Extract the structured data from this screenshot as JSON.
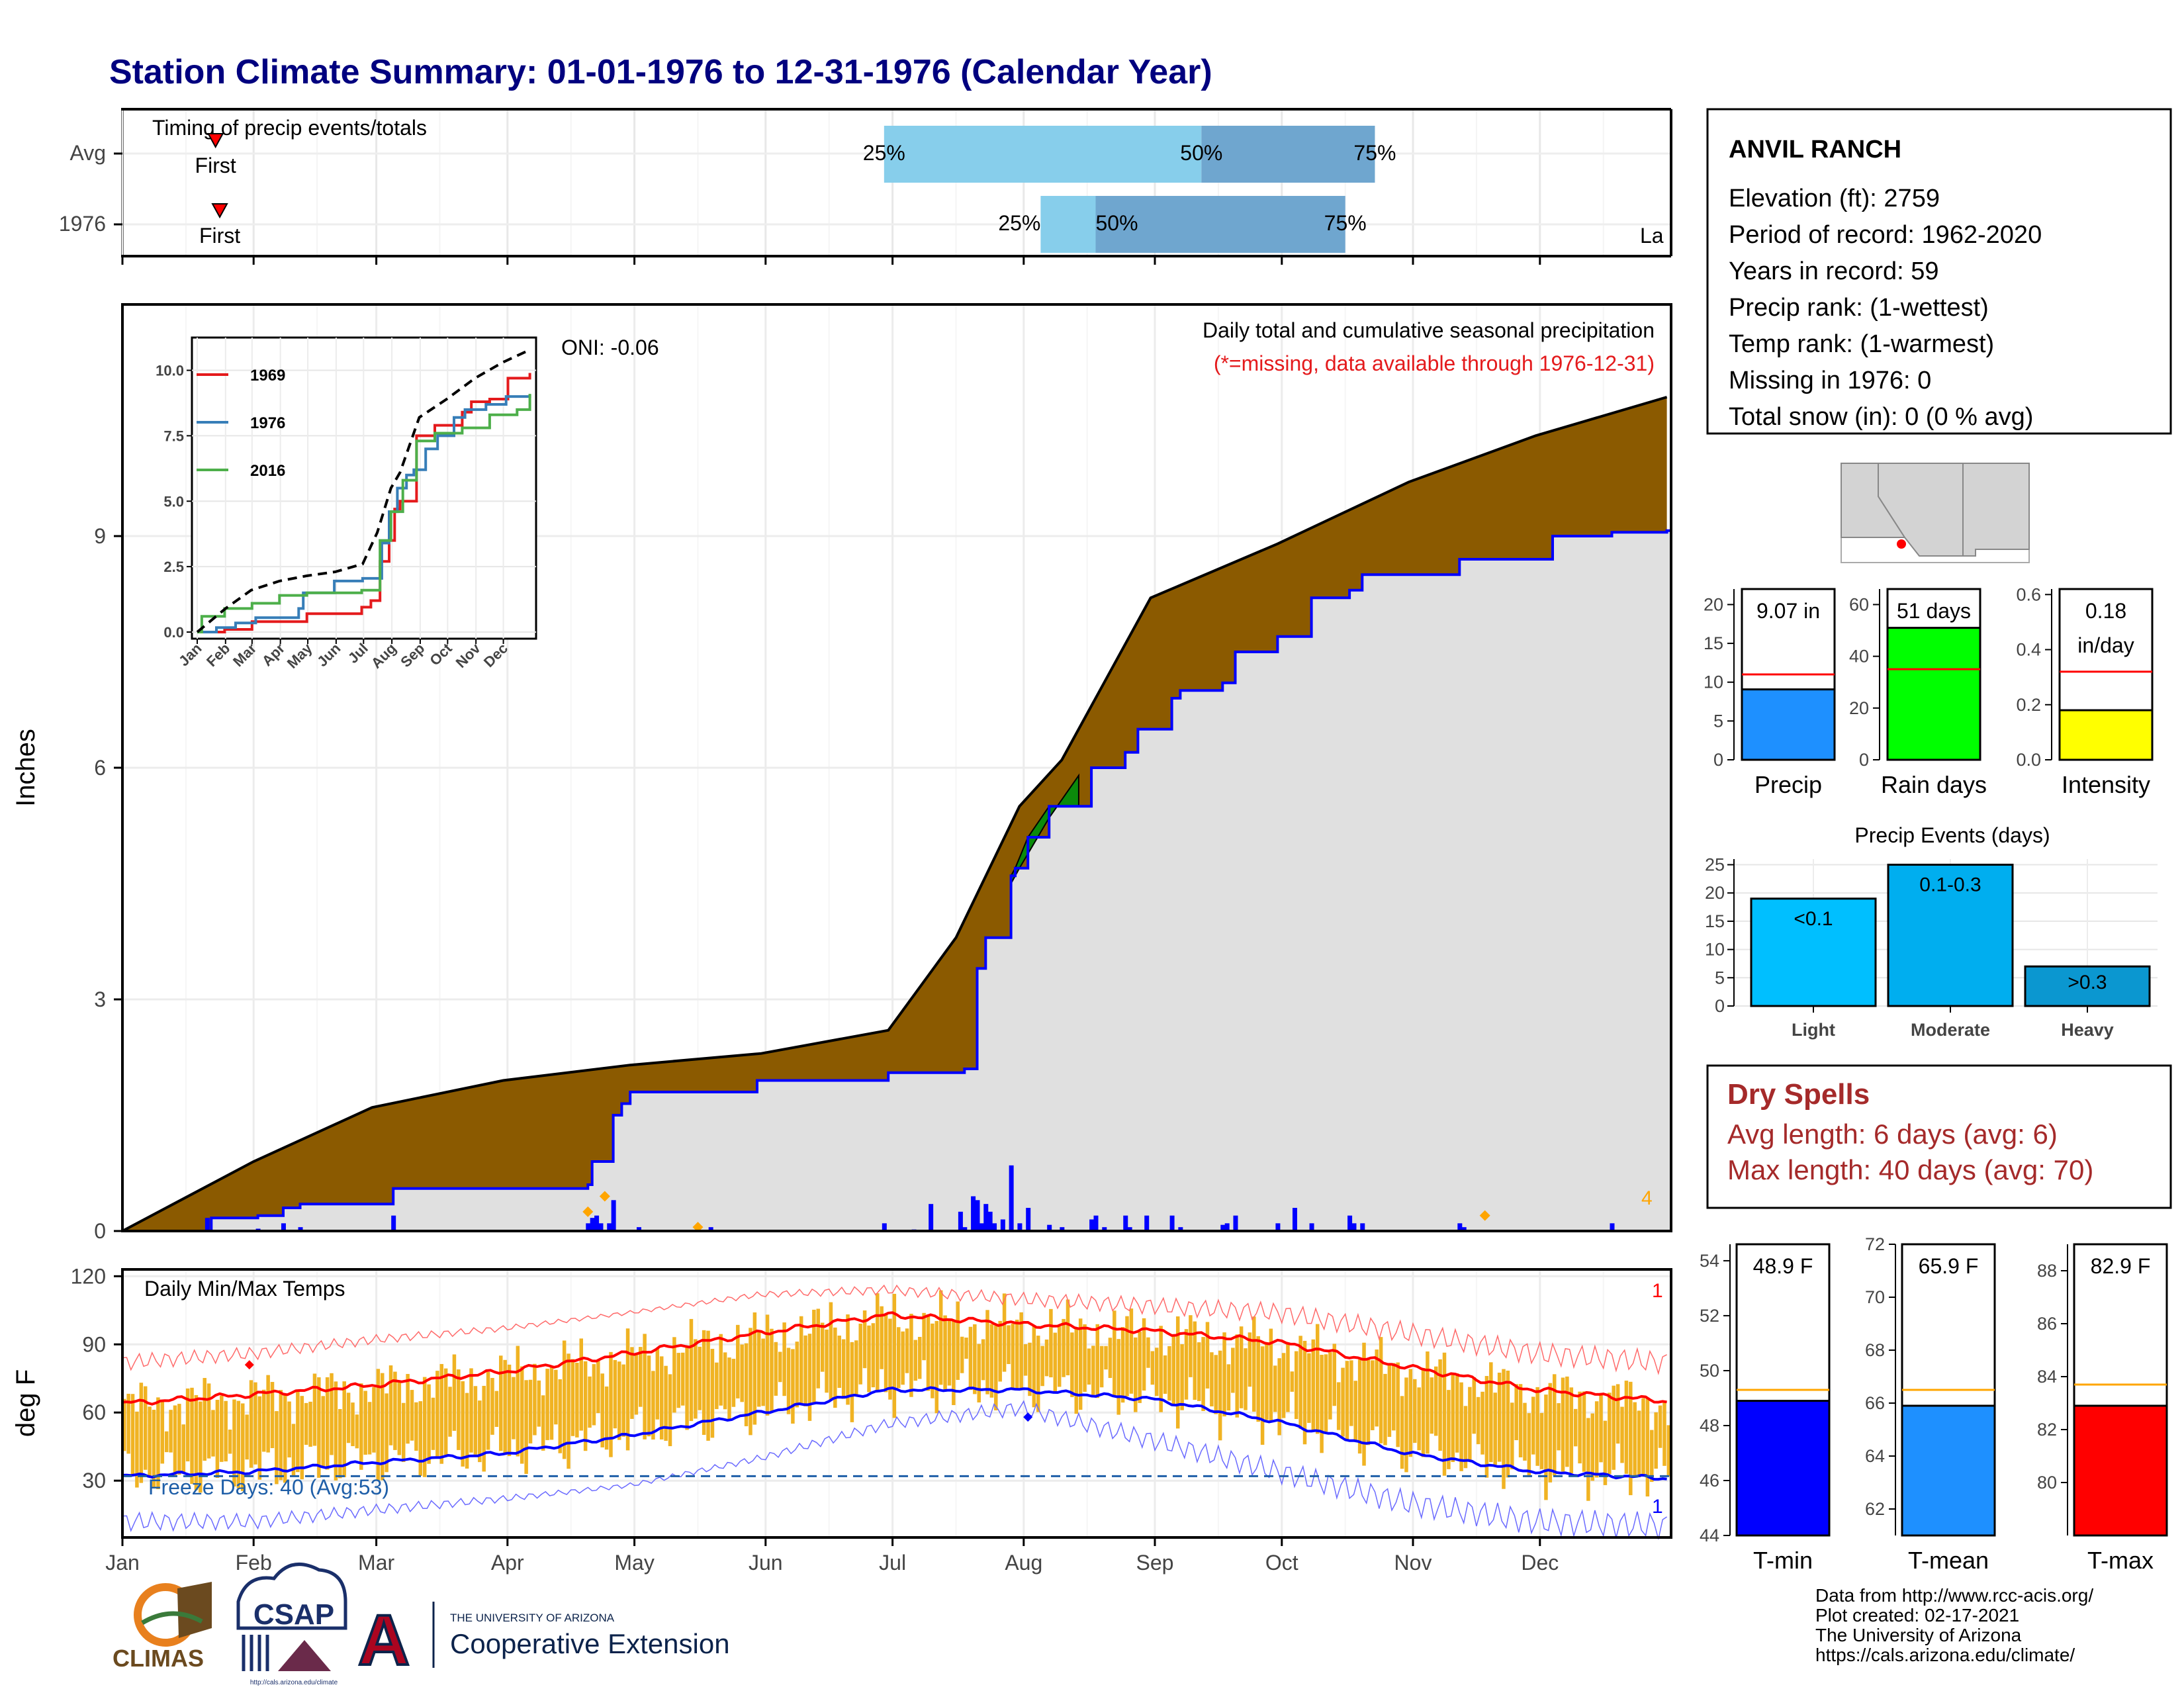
{
  "title": "Station Climate Summary: 01-01-1976 to 12-31-1976 (Calendar Year)",
  "colors": {
    "title": "#00007f",
    "precip_fill": "#8b5a00",
    "precip_line": "#0000ff",
    "gray_fill": "#e0e0e0",
    "dry_spells": "#a52a2a"
  },
  "timing": {
    "title": "Timing of precip events/totals",
    "rows": [
      "Avg",
      "1976"
    ],
    "q25_label": "25%",
    "q50_label": "50%",
    "q75_label": "75%",
    "first_label": "First",
    "last_label": "Last",
    "last_clipped_label": "La",
    "avg": {
      "first": 22,
      "q25": 180,
      "q50": 255,
      "q75": 296,
      "last": 409
    },
    "yr": {
      "first": 23,
      "q25": 217,
      "q50": 230,
      "q75": 289,
      "last": 424
    }
  },
  "main": {
    "ylabel": "Inches",
    "annot1": "Daily total and cumulative seasonal precipitation",
    "annot2": "(*=missing, data available through 1976-12-31)",
    "oni": "ONI: -0.06",
    "count": "4",
    "months": [
      "Jan",
      "Feb",
      "Mar",
      "Apr",
      "May",
      "Jun",
      "Jul",
      "Aug",
      "Sep",
      "Oct",
      "Nov",
      "Dec"
    ]
  },
  "chart_data": [
    {
      "type": "area",
      "title": "Daily total and cumulative seasonal precipitation",
      "ylabel": "Inches",
      "ylim": [
        0,
        12
      ],
      "yticks": [
        "0",
        "3",
        "6",
        "9"
      ],
      "x_unit": "day of year",
      "series": [
        {
          "name": "avg cumulative",
          "x": [
            0,
            31,
            59,
            90,
            120,
            151,
            181,
            197,
            212,
            222,
            243,
            273,
            304,
            334,
            365
          ],
          "values": [
            0,
            0.9,
            1.6,
            1.95,
            2.15,
            2.3,
            2.6,
            3.8,
            5.5,
            6.1,
            8.2,
            8.9,
            9.7,
            10.3,
            10.8
          ]
        },
        {
          "name": "1976 cumulative",
          "x": [
            0,
            20,
            21,
            32,
            38,
            42,
            64,
            110,
            111,
            116,
            118,
            120,
            150,
            180,
            181,
            199,
            202,
            204,
            210,
            211,
            214,
            219,
            226,
            229,
            237,
            240,
            248,
            250,
            260,
            263,
            273,
            281,
            290,
            293,
            316,
            335,
            338,
            352,
            365
          ],
          "values": [
            0,
            0,
            0.17,
            0.2,
            0.3,
            0.35,
            0.55,
            0.6,
            0.9,
            1.5,
            1.65,
            1.8,
            1.95,
            1.95,
            2.05,
            2.1,
            3.4,
            3.8,
            4.6,
            4.7,
            5.1,
            5.5,
            5.5,
            6.0,
            6.2,
            6.5,
            6.9,
            7.0,
            7.1,
            7.5,
            7.7,
            8.2,
            8.3,
            8.5,
            8.7,
            8.7,
            9.0,
            9.05,
            9.07
          ]
        },
        {
          "name": "daily precip",
          "x": [
            20,
            32,
            38,
            42,
            64,
            110,
            111,
            112,
            113,
            115,
            116,
            122,
            139,
            180,
            187,
            191,
            198,
            199,
            201,
            202,
            203,
            204,
            205,
            206,
            208,
            210,
            212,
            214,
            219,
            222,
            229,
            230,
            232,
            237,
            238,
            242,
            248,
            250,
            260,
            261,
            263,
            273,
            277,
            281,
            290,
            291,
            293,
            316,
            317,
            352
          ],
          "values": [
            0.17,
            0.03,
            0.1,
            0.05,
            0.2,
            0.1,
            0.17,
            0.2,
            0.1,
            0.1,
            0.4,
            0.05,
            0.05,
            0.1,
            0.02,
            0.35,
            0.25,
            0.05,
            0.45,
            0.4,
            0.1,
            0.35,
            0.25,
            0.1,
            0.15,
            0.85,
            0.1,
            0.3,
            0.08,
            0.05,
            0.15,
            0.2,
            0.05,
            0.2,
            0.05,
            0.2,
            0.2,
            0.05,
            0.08,
            0.1,
            0.2,
            0.1,
            0.3,
            0.1,
            0.2,
            0.1,
            0.1,
            0.1,
            0.05,
            0.1
          ]
        }
      ]
    },
    {
      "type": "line",
      "title": "",
      "legend": [
        "1969",
        "1976",
        "2016"
      ],
      "ylim": [
        0,
        11
      ],
      "yticks": [
        "0.0",
        "2.5",
        "5.0",
        "7.5",
        "10.0"
      ],
      "xticks": [
        "Jan",
        "Feb",
        "Mar",
        "Apr",
        "May",
        "Jun",
        "Jul",
        "Aug",
        "Sep",
        "Oct",
        "Nov",
        "Dec"
      ],
      "series": [
        {
          "name": "1969",
          "x": [
            0,
            30,
            60,
            120,
            180,
            190,
            200,
            210,
            216,
            222,
            240,
            260,
            280,
            290,
            300,
            320,
            340,
            364
          ],
          "values": [
            0,
            0.1,
            0.4,
            0.7,
            0.95,
            1.2,
            2.7,
            3.5,
            4.7,
            5.0,
            7.5,
            7.9,
            7.9,
            8.4,
            8.8,
            8.9,
            9.7,
            9.9
          ]
        },
        {
          "name": "1976",
          "x": [
            0,
            21,
            42,
            64,
            111,
            116,
            150,
            181,
            202,
            210,
            219,
            229,
            237,
            250,
            263,
            281,
            293,
            316,
            338,
            364
          ],
          "values": [
            0,
            0.17,
            0.35,
            0.55,
            0.9,
            1.5,
            1.95,
            2.05,
            3.4,
            4.6,
            5.5,
            6.0,
            6.2,
            7.0,
            7.5,
            8.2,
            8.5,
            8.7,
            9.0,
            9.07
          ]
        },
        {
          "name": "2016",
          "x": [
            0,
            5,
            30,
            60,
            90,
            120,
            160,
            180,
            200,
            212,
            225,
            240,
            260,
            290,
            320,
            350,
            364
          ],
          "values": [
            0,
            0.6,
            0.9,
            1.1,
            1.4,
            1.5,
            1.5,
            1.6,
            3.5,
            4.6,
            5.8,
            7.3,
            7.6,
            7.8,
            8.3,
            8.5,
            9.1
          ]
        },
        {
          "name": "average",
          "x": [
            0,
            31,
            59,
            90,
            120,
            151,
            181,
            197,
            212,
            222,
            243,
            273,
            304,
            334,
            365
          ],
          "values": [
            0,
            0.9,
            1.6,
            1.95,
            2.15,
            2.3,
            2.6,
            3.8,
            5.5,
            6.1,
            8.2,
            8.9,
            9.7,
            10.3,
            10.8
          ]
        }
      ]
    },
    {
      "type": "line",
      "title": "Daily Min/Max Temps",
      "ylabel": "deg F",
      "ylim": [
        0,
        120
      ],
      "yticks": [
        "30",
        "60",
        "90",
        "120"
      ],
      "freeze_line": 32,
      "series": [
        {
          "name": "avg max",
          "x": [
            0,
            31,
            59,
            90,
            120,
            151,
            181,
            212,
            243,
            273,
            304,
            334,
            365
          ],
          "values": [
            64,
            68,
            72,
            78,
            86,
            95,
            103,
            99,
            96,
            91,
            80,
            70,
            65
          ]
        },
        {
          "name": "avg min",
          "x": [
            0,
            31,
            59,
            90,
            120,
            151,
            181,
            212,
            243,
            273,
            304,
            334,
            365
          ],
          "values": [
            32,
            34,
            38,
            42,
            50,
            60,
            70,
            70,
            66,
            56,
            42,
            34,
            31
          ]
        },
        {
          "name": "record max",
          "x": [
            0,
            31,
            59,
            90,
            120,
            151,
            181,
            212,
            243,
            273,
            304,
            334,
            365
          ],
          "values": [
            82,
            86,
            92,
            97,
            104,
            112,
            114,
            110,
            107,
            104,
            95,
            86,
            82
          ]
        },
        {
          "name": "record min",
          "x": [
            0,
            31,
            59,
            90,
            120,
            151,
            181,
            212,
            243,
            273,
            304,
            334,
            365
          ],
          "values": [
            12,
            12,
            17,
            22,
            28,
            40,
            55,
            62,
            48,
            34,
            20,
            12,
            10
          ]
        }
      ]
    },
    {
      "type": "bar",
      "title": "Precip Events (days)",
      "categories": [
        "Light",
        "Moderate",
        "Heavy"
      ],
      "bar_labels": [
        "<0.1",
        "0.1-0.3",
        ">0.3"
      ],
      "values": [
        19,
        25,
        7
      ],
      "ylim": [
        0,
        26
      ],
      "yticks": [
        "0",
        "5",
        "10",
        "15",
        "20",
        "25"
      ]
    }
  ],
  "temp_panel": {
    "title": "Daily Min/Max Temps",
    "ylabel": "deg F",
    "freeze": "Freeze Days: 40 (Avg:53)",
    "count_red": "1",
    "count_blue": "1"
  },
  "station": {
    "name": "ANVIL RANCH",
    "lines": [
      "Elevation (ft): 2759",
      "Period of record: 1962-2020",
      "Years in record: 59",
      "Precip rank:  (1-wettest)",
      "Temp rank:  (1-warmest)",
      "Missing in 1976: 0",
      "Total snow (in): 0 (0 % avg)"
    ]
  },
  "summary_bars": [
    {
      "label": "Precip",
      "value": 9.07,
      "avg": 11.0,
      "max": 22,
      "ticks": [
        0,
        5,
        10,
        15,
        20
      ],
      "tick_labels": [
        "0",
        "5",
        "10",
        "15",
        "20"
      ],
      "text": [
        "9.07 in"
      ],
      "color": "#1e90ff"
    },
    {
      "label": "Rain days",
      "value": 51,
      "avg": 35,
      "max": 66,
      "ticks": [
        0,
        20,
        40,
        60
      ],
      "tick_labels": [
        "0",
        "20",
        "40",
        "60"
      ],
      "text": [
        "51 days"
      ],
      "color": "#00ff00"
    },
    {
      "label": "Intensity",
      "value": 0.18,
      "avg": 0.32,
      "max": 0.62,
      "ticks": [
        0,
        0.2,
        0.4,
        0.6
      ],
      "tick_labels": [
        "0.0",
        "0.2",
        "0.4",
        "0.6"
      ],
      "text": [
        "0.18",
        "in/day"
      ],
      "color": "#ffff00"
    }
  ],
  "temp_bars": [
    {
      "label": "T-min",
      "value": 48.9,
      "avg": 49.3,
      "min": 44,
      "max": 54.6,
      "ticks": [
        44,
        46,
        48,
        50,
        52,
        54
      ],
      "tick_labels": [
        "44",
        "46",
        "48",
        "50",
        "52",
        "54"
      ],
      "text": "48.9 F",
      "color": "#0000ff"
    },
    {
      "label": "T-mean",
      "value": 65.9,
      "avg": 66.5,
      "min": 61,
      "max": 72,
      "ticks": [
        62,
        64,
        66,
        68,
        70,
        72
      ],
      "tick_labels": [
        "62",
        "64",
        "66",
        "68",
        "70",
        "72"
      ],
      "text": "65.9 F",
      "color": "#1e90ff"
    },
    {
      "label": "T-max",
      "value": 82.9,
      "avg": 83.7,
      "min": 78,
      "max": 89,
      "ticks": [
        80,
        82,
        84,
        86,
        88
      ],
      "tick_labels": [
        "80",
        "82",
        "84",
        "86",
        "88"
      ],
      "text": "82.9 F",
      "color": "#ff0000"
    }
  ],
  "events": {
    "title": "Precip Events (days)"
  },
  "dry": {
    "title": "Dry Spells",
    "avg": "Avg length: 6 days (avg: 6)",
    "max": "Max length: 40 days (avg: 70)"
  },
  "footer": {
    "climas": "CLIMAS",
    "csap": "CSAP",
    "csap_url": "http://cals.arizona.edu/climate",
    "ua_small": "THE UNIVERSITY OF ARIZONA",
    "ua_big": "Cooperative Extension",
    "credits": [
      "Data from http://www.rcc-acis.org/",
      "Plot created: 02-17-2021",
      "The University of Arizona",
      "https://cals.arizona.edu/climate/"
    ]
  }
}
